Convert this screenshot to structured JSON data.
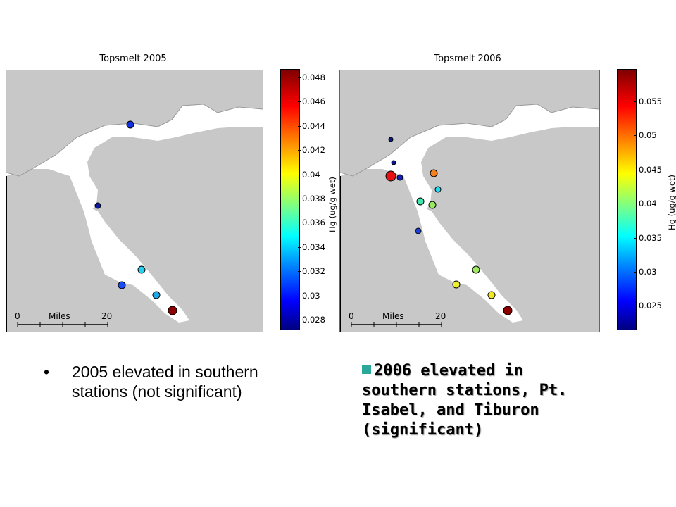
{
  "maps": [
    {
      "title": "Topsmelt 2005",
      "scale": {
        "zero": "0",
        "label": "Miles",
        "end": "20"
      },
      "colorbar": {
        "ticks": [
          "0.048",
          "0.046",
          "0.044",
          "0.042",
          "0.04",
          "0.038",
          "0.036",
          "0.034",
          "0.032",
          "0.03",
          "0.028"
        ],
        "label": "Hg (ug/g wet)"
      },
      "stations": [
        {
          "color": "#1030e8"
        },
        {
          "color": "#0c1a9a"
        },
        {
          "color": "#26d0ee"
        },
        {
          "color": "#1a4cf0"
        },
        {
          "color": "#1ea8e8"
        },
        {
          "color": "#8a0000"
        }
      ]
    },
    {
      "title": "Topsmelt 2006",
      "scale": {
        "zero": "0",
        "label": "Miles",
        "end": "20"
      },
      "colorbar": {
        "ticks": [
          "0.055",
          "0.05",
          "0.045",
          "0.04",
          "0.035",
          "0.03",
          "0.025"
        ],
        "label": "Hg (ug/g wet)"
      },
      "stations": [
        {
          "color": "#0c1690"
        },
        {
          "color": "#0c1690"
        },
        {
          "color": "#e81010"
        },
        {
          "color": "#1420b8"
        },
        {
          "color": "#f08020"
        },
        {
          "color": "#26d8ee"
        },
        {
          "color": "#40e8b0"
        },
        {
          "color": "#98e860"
        },
        {
          "color": "#1a40e0"
        },
        {
          "color": "#a0e860"
        },
        {
          "color": "#e8f030"
        },
        {
          "color": "#f0e820"
        },
        {
          "color": "#8a0000"
        }
      ]
    }
  ],
  "bullets": {
    "left": {
      "marker": "•",
      "text": "2005 elevated in southern stations (not significant)"
    },
    "right": {
      "text": "2006 elevated in southern stations, Pt. Isabel, and Tiburon (significant)"
    }
  }
}
